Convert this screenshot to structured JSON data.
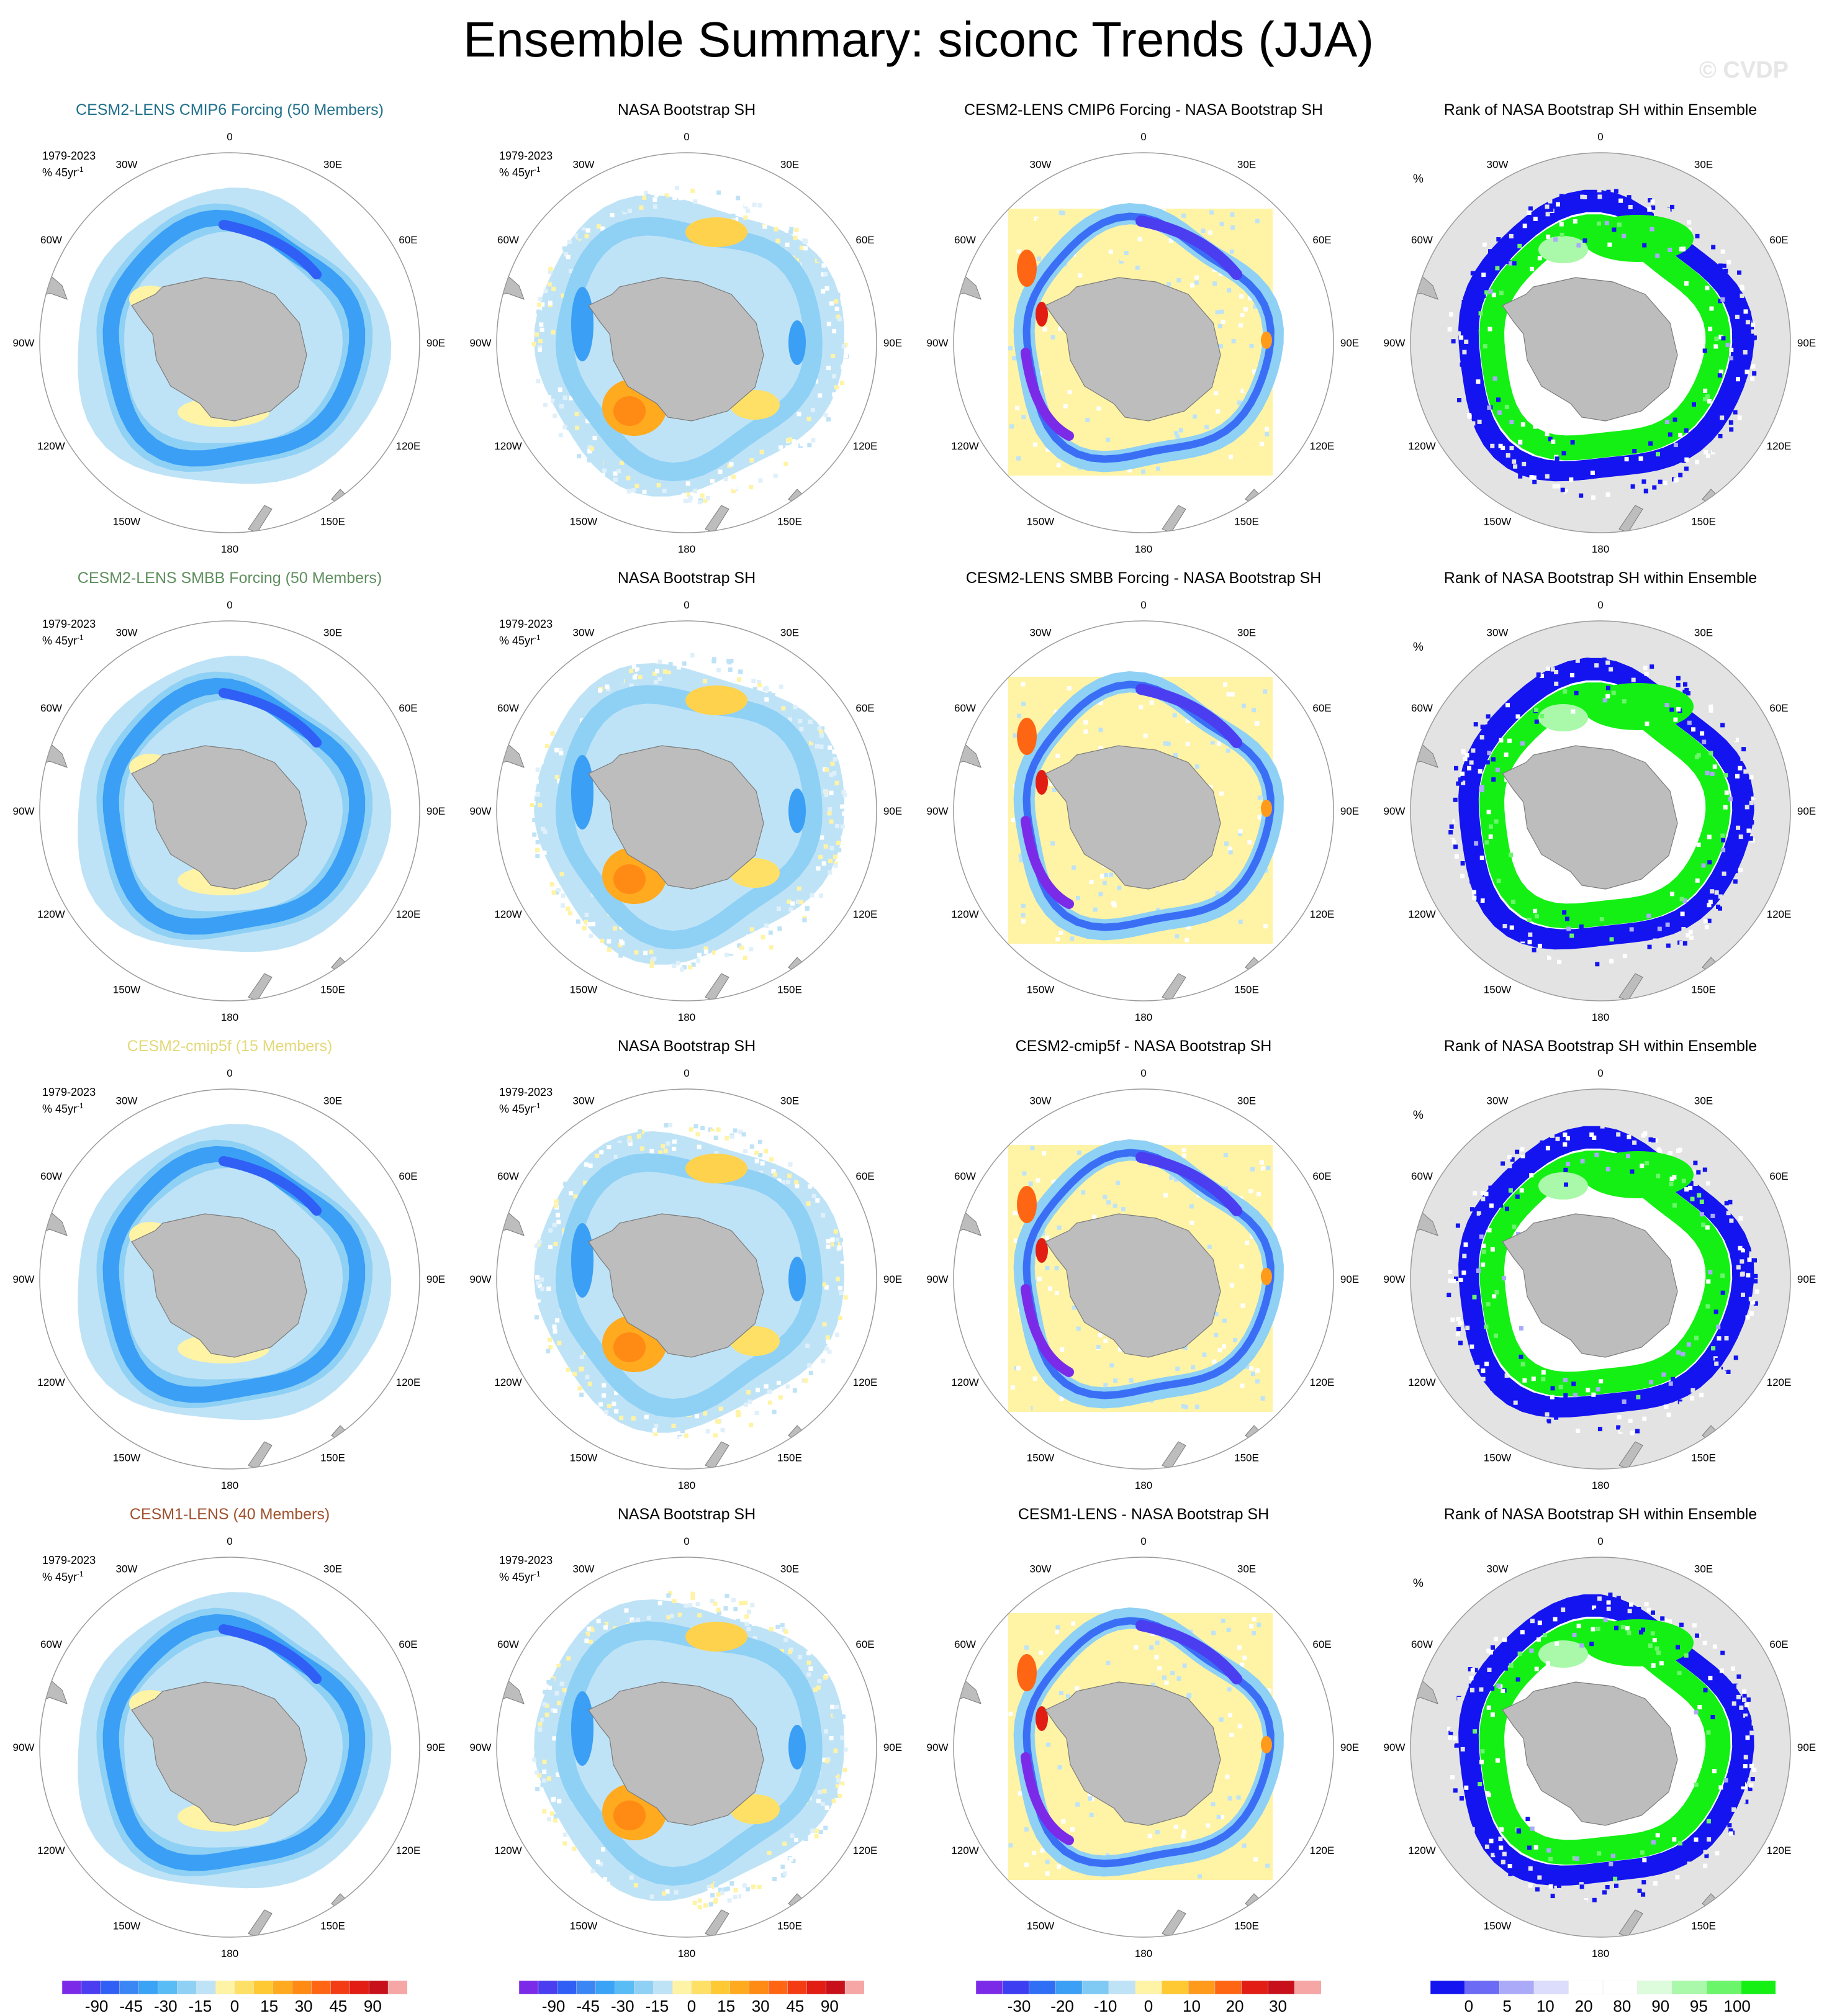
{
  "title": "Ensemble Summary: siconc Trends (JJA)",
  "watermark": "© CVDP",
  "period": "1979-2023",
  "units": "% 45yr",
  "units_sup": "-1",
  "rank_units": "%",
  "lon_labels": [
    "0",
    "30E",
    "60E",
    "90E",
    "120E",
    "150E",
    "180",
    "150W",
    "120W",
    "90W",
    "60W",
    "30W"
  ],
  "panels": [
    {
      "title": "CESM2-LENS CMIP6 Forcing (50 Members)",
      "color": "#1f6f8b",
      "kind": "model"
    },
    {
      "title": "NASA Bootstrap SH",
      "color": "#000000",
      "kind": "obs"
    },
    {
      "title": "CESM2-LENS CMIP6 Forcing - NASA Bootstrap SH",
      "color": "#000000",
      "kind": "diff"
    },
    {
      "title": "Rank of NASA Bootstrap SH within Ensemble",
      "color": "#000000",
      "kind": "rank"
    },
    {
      "title": "CESM2-LENS SMBB Forcing (50 Members)",
      "color": "#5f8f5f",
      "kind": "model"
    },
    {
      "title": "NASA Bootstrap SH",
      "color": "#000000",
      "kind": "obs"
    },
    {
      "title": "CESM2-LENS SMBB Forcing - NASA Bootstrap SH",
      "color": "#000000",
      "kind": "diff"
    },
    {
      "title": "Rank of NASA Bootstrap SH within Ensemble",
      "color": "#000000",
      "kind": "rank"
    },
    {
      "title": "CESM2-cmip5f (15 Members)",
      "color": "#e3d97a",
      "kind": "model"
    },
    {
      "title": "NASA Bootstrap SH",
      "color": "#000000",
      "kind": "obs"
    },
    {
      "title": "CESM2-cmip5f - NASA Bootstrap SH",
      "color": "#000000",
      "kind": "diff"
    },
    {
      "title": "Rank of NASA Bootstrap SH within Ensemble",
      "color": "#000000",
      "kind": "rank"
    },
    {
      "title": "CESM1-LENS (40 Members)",
      "color": "#a0522d",
      "kind": "model"
    },
    {
      "title": "NASA Bootstrap SH",
      "color": "#000000",
      "kind": "obs"
    },
    {
      "title": "CESM1-LENS - NASA Bootstrap SH",
      "color": "#000000",
      "kind": "diff"
    },
    {
      "title": "Rank of NASA Bootstrap SH within Ensemble",
      "color": "#000000",
      "kind": "rank"
    }
  ],
  "colorbars": [
    {
      "ticks": [
        "-90",
        "-45",
        "-30",
        "-15",
        "0",
        "15",
        "30",
        "45",
        "90"
      ],
      "colors": [
        "#7b2be8",
        "#4b3df0",
        "#2f5ff5",
        "#3a86f5",
        "#3aa3f5",
        "#59bcf5",
        "#8fd0f5",
        "#bfe3f6",
        "#fff3a6",
        "#ffe066",
        "#ffc933",
        "#ffaa1f",
        "#ff8a14",
        "#ff6614",
        "#f43c14",
        "#e11d14",
        "#c7101a",
        "#f7a6a6"
      ]
    },
    {
      "ticks": [
        "-90",
        "-45",
        "-30",
        "-15",
        "0",
        "15",
        "30",
        "45",
        "90"
      ],
      "colors": [
        "#7b2be8",
        "#4b3df0",
        "#2f5ff5",
        "#3a86f5",
        "#3aa3f5",
        "#59bcf5",
        "#8fd0f5",
        "#bfe3f6",
        "#fff3a6",
        "#ffe066",
        "#ffc933",
        "#ffaa1f",
        "#ff8a14",
        "#ff6614",
        "#f43c14",
        "#e11d14",
        "#c7101a",
        "#f7a6a6"
      ]
    },
    {
      "ticks": [
        "-30",
        "-20",
        "-10",
        "0",
        "10",
        "20",
        "30"
      ],
      "colors": [
        "#7b2be8",
        "#3d3df2",
        "#2f6ff5",
        "#3a9ff5",
        "#7fc9f5",
        "#bfe3f6",
        "#fff3a6",
        "#ffc933",
        "#ff9a1a",
        "#ff6614",
        "#e11d14",
        "#c7101a",
        "#f7a6a6"
      ]
    },
    {
      "ticks": [
        "0",
        "5",
        "10",
        "20",
        "80",
        "90",
        "95",
        "100"
      ],
      "colors": [
        "#1414f0",
        "#6b6bf5",
        "#aaaaf8",
        "#dcdcfc",
        "#ffffff",
        "#ffffff",
        "#dcfcdc",
        "#aaf8aa",
        "#6bf56b",
        "#14f014"
      ]
    }
  ]
}
